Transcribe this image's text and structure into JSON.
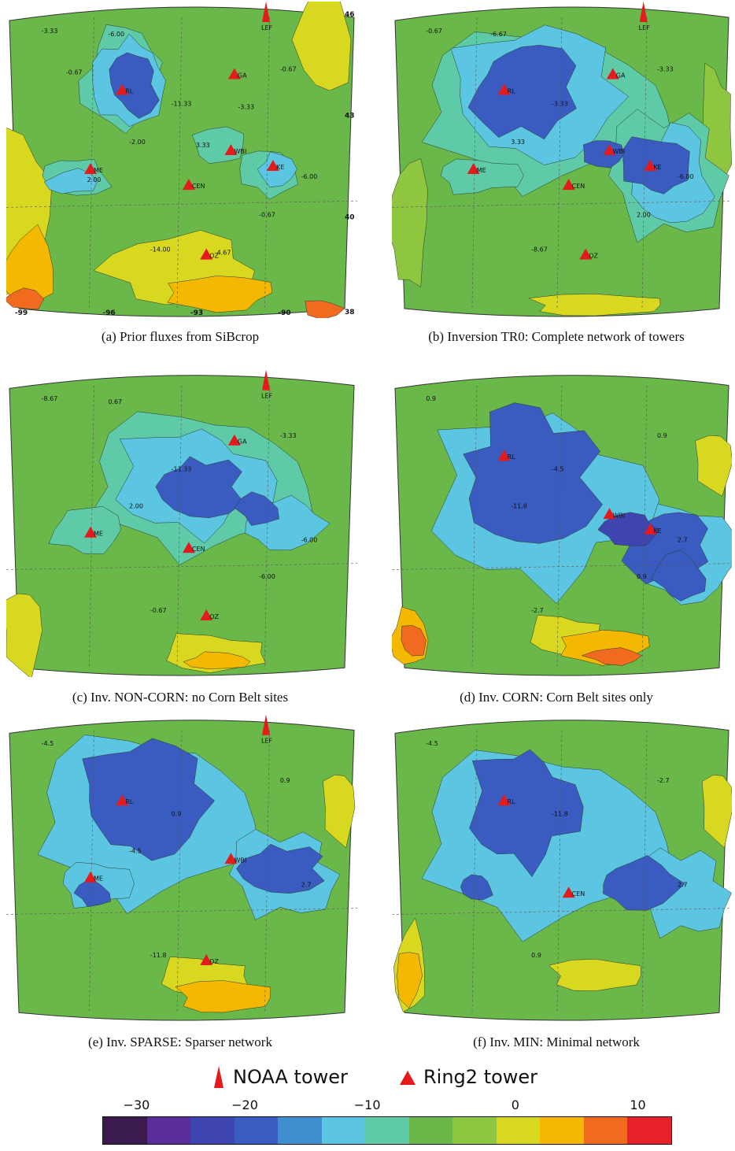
{
  "panels": [
    {
      "id": "a",
      "caption": "(a) Prior fluxes from SiBcrop",
      "sites": [
        "RL",
        "GA",
        "WBI",
        "KE",
        "ME",
        "CEN",
        "OZ",
        "LEF"
      ],
      "coords_lat": [
        "46",
        "43",
        "40",
        "38"
      ],
      "coords_lon": [
        "-99",
        "-96",
        "-93",
        "-90"
      ],
      "contour_labels": [
        "-3.33",
        "-11.33",
        "-6.00",
        "-14.00",
        "-0.67",
        "-2.00",
        "-0.67",
        "-6.00",
        "-3.33",
        "2.00",
        "4.67",
        "-0.67",
        "3.33"
      ]
    },
    {
      "id": "b",
      "caption": "(b) Inversion TR0: Complete network of towers",
      "sites": [
        "RL",
        "GA",
        "WBI",
        "KE",
        "ME",
        "CEN",
        "OZ",
        "LEF"
      ],
      "contour_labels": [
        "-0.67",
        "-3.33",
        "-6.00",
        "-8.67",
        "-3.33",
        "3.33",
        "2.00",
        "-6.67"
      ]
    },
    {
      "id": "c",
      "caption": "(c) Inv. NON-CORN: no Corn Belt sites",
      "sites": [
        "GA",
        "ME",
        "CEN",
        "OZ",
        "LEF"
      ],
      "contour_labels": [
        "-8.67",
        "-11.33",
        "-6.00",
        "-0.67",
        "-3.33",
        "2.00",
        "-6.00",
        "0.67"
      ]
    },
    {
      "id": "d",
      "caption": "(d) Inv. CORN: Corn Belt sites only",
      "sites": [
        "RL",
        "WBI",
        "KE"
      ],
      "contour_labels": [
        "0.9",
        "-4.5",
        "2.7",
        "-2.7",
        "0.9",
        "-11.8",
        "0.9"
      ]
    },
    {
      "id": "e",
      "caption": "(e) Inv. SPARSE: Sparser network",
      "sites": [
        "RL",
        "WBI",
        "ME",
        "OZ",
        "LEF"
      ],
      "contour_labels": [
        "-4.5",
        "0.9",
        "2.7",
        "-11.8",
        "0.9",
        "-4.5"
      ]
    },
    {
      "id": "f",
      "caption": "(f) Inv. MIN: Minimal network",
      "sites": [
        "RL",
        "CEN"
      ],
      "contour_labels": [
        "-4.5",
        "-11.8",
        "2.7",
        "0.9",
        "-2.7"
      ]
    }
  ],
  "legend": {
    "noaa_label": "NOAA tower",
    "ring2_label": "Ring2 tower",
    "marker_color": "#e41a1c"
  },
  "colorbar": {
    "ticks": [
      "−30",
      "−20",
      "−10",
      "0",
      "10"
    ],
    "colors": [
      "#3b1a4f",
      "#5b2d9a",
      "#3e45b0",
      "#3a5cc0",
      "#3f8fd0",
      "#5cc6e2",
      "#5fcaa8",
      "#6ab84a",
      "#8ec63f",
      "#d8d820",
      "#f5b800",
      "#f06a20",
      "#e8202a"
    ]
  }
}
